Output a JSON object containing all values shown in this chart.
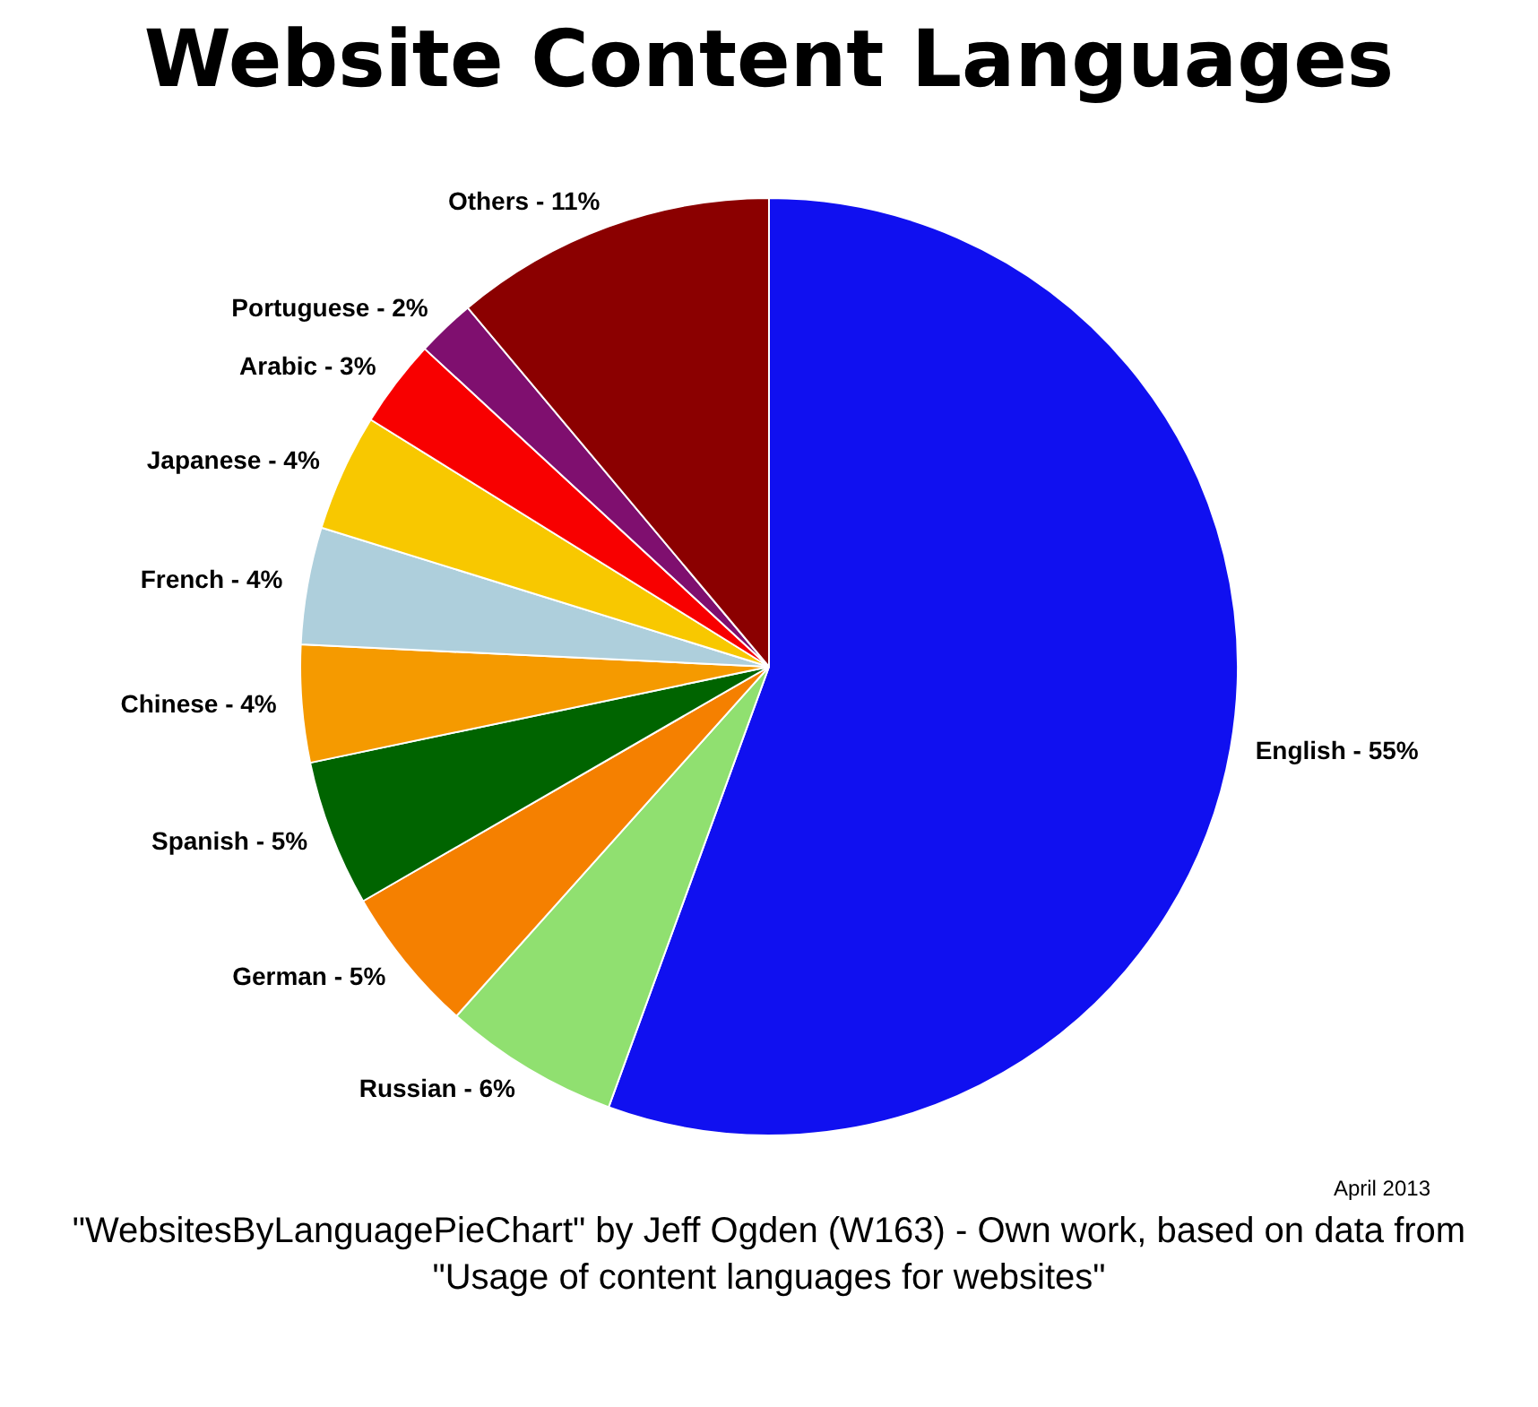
{
  "chart_data": {
    "type": "pie",
    "title": "Website Content Languages",
    "categories": [
      "English - 55%",
      "Russian - 6%",
      "German - 5%",
      "Spanish - 5%",
      "Chinese - 4%",
      "French - 4%",
      "Japanese - 4%",
      "Arabic - 3%",
      "Portuguese - 2%",
      "Others - 11%"
    ],
    "values": [
      55,
      6,
      5,
      5,
      4,
      4,
      4,
      3,
      2,
      11
    ],
    "colors": [
      "#1010f0",
      "#90e070",
      "#f58000",
      "#006400",
      "#f59a00",
      "#aecfdc",
      "#f8c800",
      "#f80000",
      "#7f0f6f",
      "#8b0000"
    ],
    "legend": false,
    "annotations": [
      "April 2013",
      "\"WebsitesByLanguagePieChart\" by Jeff Ogden (W163) - Own work, based on data from \"Usage of content languages for websites\""
    ]
  }
}
